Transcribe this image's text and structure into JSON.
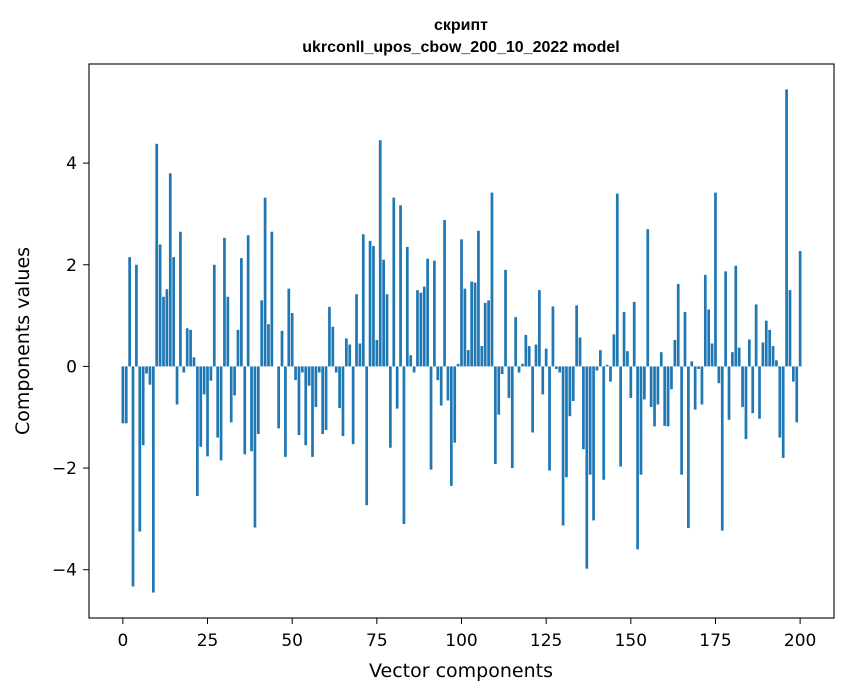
{
  "chart_data": {
    "type": "bar",
    "title_line1": "скрипт",
    "title_line2": "ukrconll_upos_cbow_200_10_2022 model",
    "xlabel": "Vector components",
    "ylabel": "Components values",
    "xlim": [
      -10,
      210
    ],
    "ylim": [
      -4.95,
      5.95
    ],
    "xticks": [
      0,
      25,
      50,
      75,
      100,
      125,
      150,
      175,
      200
    ],
    "yticks": [
      -4,
      -2,
      0,
      2,
      4
    ],
    "ytick_labels": [
      "−4",
      "−2",
      "0",
      "2",
      "4"
    ],
    "grid": false,
    "bar_color": "#1f77b4",
    "values": [
      -1.12,
      -1.12,
      2.15,
      -4.33,
      2.0,
      -3.25,
      -1.55,
      -0.14,
      -0.36,
      -4.45,
      4.38,
      2.4,
      1.37,
      1.52,
      3.8,
      2.15,
      -0.75,
      2.65,
      -0.12,
      0.75,
      0.72,
      0.18,
      -2.55,
      -1.58,
      -0.55,
      -1.77,
      -0.28,
      2.0,
      -1.4,
      -1.85,
      2.53,
      1.37,
      -1.1,
      -0.57,
      0.72,
      2.13,
      -1.73,
      2.58,
      -1.67,
      -3.17,
      -1.33,
      1.3,
      3.32,
      0.83,
      2.65,
      0.0,
      -1.22,
      0.7,
      -1.78,
      1.53,
      1.05,
      -0.27,
      -1.35,
      -0.12,
      -1.55,
      -0.38,
      -1.78,
      -0.8,
      -0.12,
      -1.33,
      -1.25,
      1.17,
      0.78,
      -0.12,
      -0.82,
      -1.37,
      0.55,
      0.43,
      -1.53,
      1.42,
      0.45,
      2.6,
      -2.73,
      2.47,
      2.37,
      0.52,
      4.45,
      2.1,
      1.42,
      -1.6,
      3.32,
      -0.83,
      3.17,
      -3.1,
      2.35,
      0.22,
      -0.12,
      1.5,
      1.45,
      1.57,
      2.12,
      -2.03,
      2.08,
      -0.27,
      -0.77,
      2.88,
      -0.67,
      -2.35,
      -1.5,
      0.05,
      2.5,
      1.53,
      0.32,
      1.67,
      1.65,
      2.67,
      0.4,
      1.25,
      1.3,
      3.42,
      -1.92,
      -0.95,
      -0.15,
      1.9,
      -0.62,
      -2.0,
      0.97,
      -0.12,
      0.05,
      0.62,
      0.4,
      -1.3,
      0.43,
      1.5,
      -0.55,
      0.35,
      -2.05,
      1.18,
      -0.05,
      -0.12,
      -3.13,
      -2.18,
      -0.98,
      -0.68,
      1.2,
      0.57,
      -1.63,
      -3.98,
      -2.13,
      -3.03,
      -0.08,
      0.32,
      -2.23,
      0.03,
      -0.3,
      0.63,
      3.4,
      -1.97,
      1.07,
      0.3,
      -0.62,
      1.27,
      -3.6,
      -2.13,
      -0.65,
      2.7,
      -0.8,
      -1.18,
      -0.75,
      0.28,
      -1.17,
      -1.18,
      -0.45,
      0.52,
      1.62,
      -2.13,
      1.07,
      -3.18,
      0.1,
      -0.85,
      -0.05,
      -0.75,
      1.8,
      1.12,
      0.45,
      3.42,
      -0.33,
      -3.23,
      1.87,
      -1.05,
      0.28,
      1.98,
      0.37,
      -0.8,
      -1.43,
      0.53,
      -0.92,
      1.22,
      -1.03,
      0.47,
      0.9,
      0.72,
      0.4,
      0.12,
      -1.4,
      -1.8,
      5.45,
      1.5,
      -0.3,
      -1.1,
      2.27
    ]
  }
}
